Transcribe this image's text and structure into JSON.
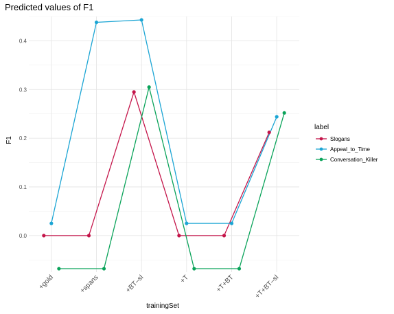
{
  "chart_data": {
    "type": "line",
    "title": "Predicted values of F1",
    "xlabel": "trainingSet",
    "ylabel": "F1",
    "categories": [
      "+gold",
      "+spans",
      "+BT–sl",
      "+T",
      "+T+BT",
      "+T+BT–sl"
    ],
    "y_ticks": [
      "0.0",
      "0.1",
      "0.2",
      "0.3",
      "0.4"
    ],
    "ylim": [
      -0.075,
      0.45
    ],
    "grid": true,
    "legend_title": "label",
    "legend_position": "right",
    "series": [
      {
        "name": "Slogans",
        "color": "#c4154a",
        "values": [
          0.0,
          0.0,
          0.295,
          0.0,
          0.0,
          0.212
        ]
      },
      {
        "name": "Appeal_to_Time",
        "color": "#1ba5d4",
        "values": [
          0.025,
          0.438,
          0.443,
          0.025,
          0.025,
          0.244
        ]
      },
      {
        "name": "Conversation_Killer",
        "color": "#0aa35a",
        "values": [
          -0.068,
          -0.068,
          0.305,
          -0.068,
          -0.068,
          0.252
        ]
      }
    ]
  }
}
